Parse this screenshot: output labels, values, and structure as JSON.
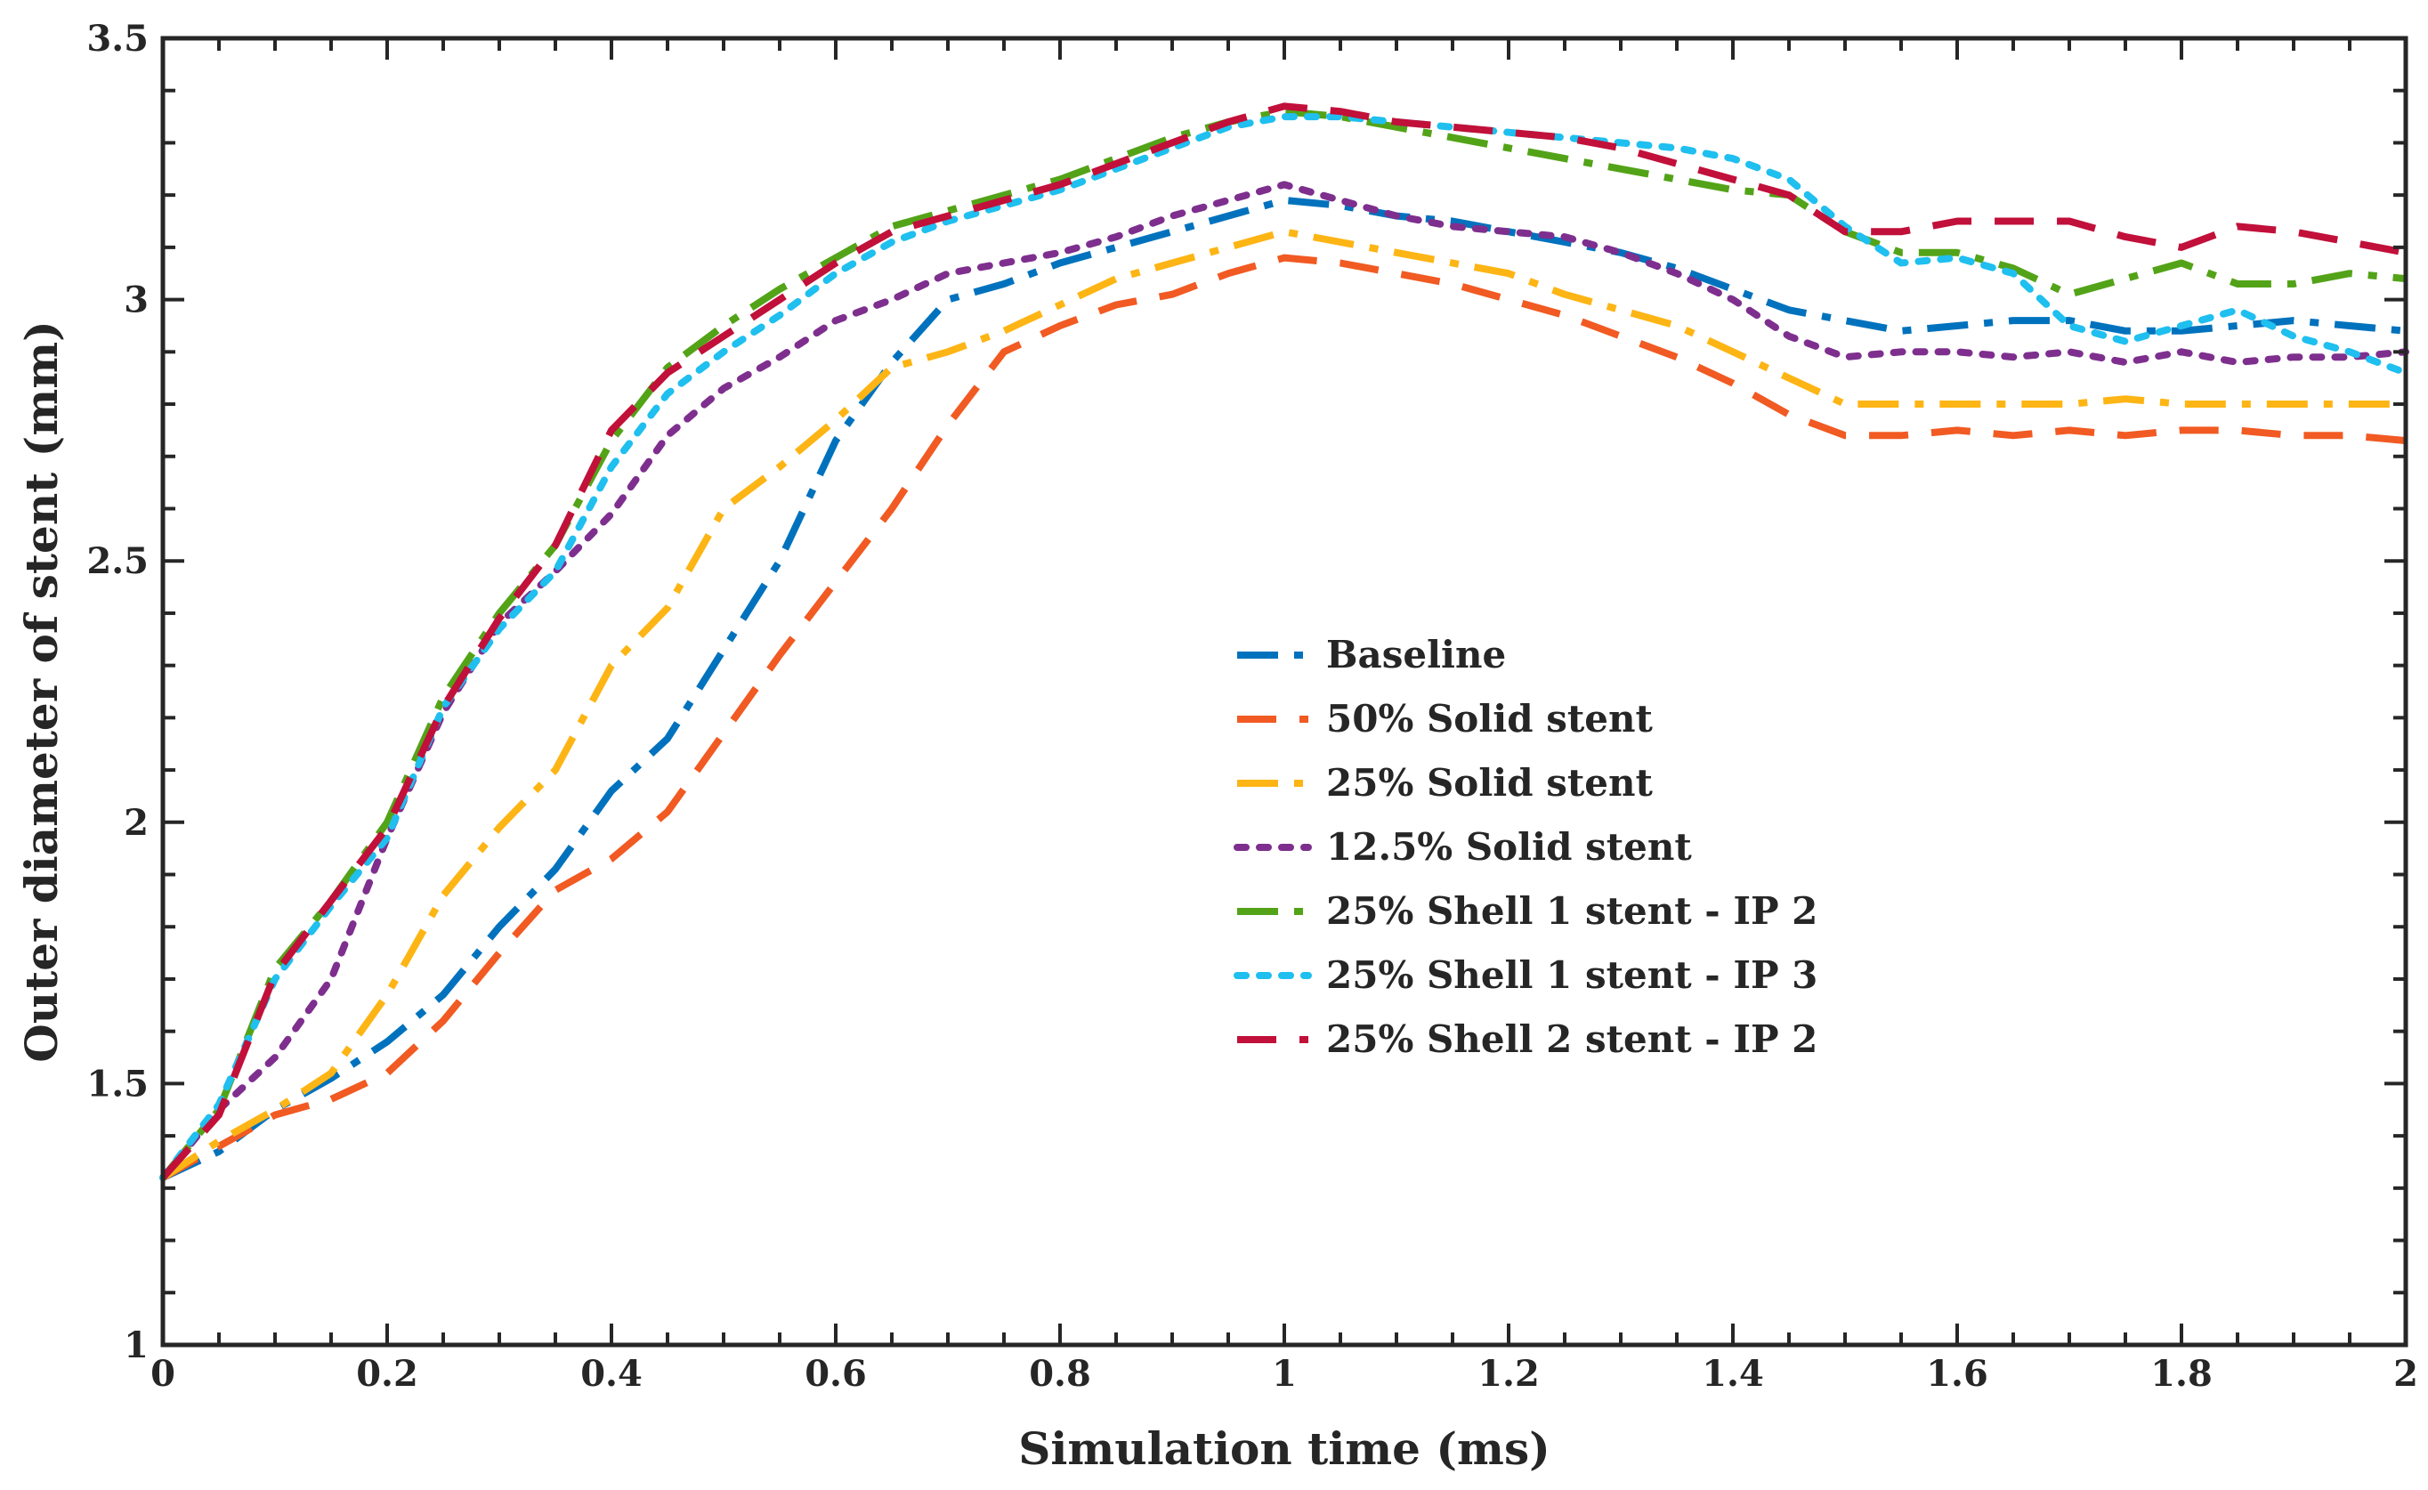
{
  "chart_data": {
    "type": "line",
    "title": "",
    "xlabel": "Simulation time (ms)",
    "ylabel": "Outer diameter of stent (mm)",
    "xlim": [
      0,
      2
    ],
    "ylim": [
      1,
      3.5
    ],
    "grid": false,
    "legend_position": "center-right",
    "x_ticks": [
      0,
      0.2,
      0.4,
      0.6,
      0.8,
      1,
      1.2,
      1.4,
      1.6,
      1.8,
      2
    ],
    "x_tick_labels": [
      "0",
      "0.2",
      "0.4",
      "0.6",
      "0.8",
      "1",
      "1.2",
      "1.4",
      "1.6",
      "1.8",
      "2"
    ],
    "y_ticks": [
      1,
      1.5,
      2,
      2.5,
      3,
      3.5
    ],
    "y_tick_labels": [
      "1",
      "1.5",
      "2",
      "2.5",
      "3",
      "3.5"
    ],
    "x": [
      0,
      0.05,
      0.1,
      0.15,
      0.2,
      0.25,
      0.3,
      0.35,
      0.4,
      0.45,
      0.5,
      0.55,
      0.6,
      0.65,
      0.7,
      0.75,
      0.8,
      0.85,
      0.9,
      0.95,
      1.0,
      1.05,
      1.1,
      1.15,
      1.2,
      1.25,
      1.3,
      1.35,
      1.4,
      1.45,
      1.5,
      1.55,
      1.6,
      1.65,
      1.7,
      1.75,
      1.8,
      1.85,
      1.9,
      1.95,
      2.0
    ],
    "series": [
      {
        "name": "Baseline",
        "color": "#0072BD",
        "dash": "dashdot",
        "values": [
          1.32,
          1.37,
          1.45,
          1.51,
          1.58,
          1.67,
          1.8,
          1.91,
          2.06,
          2.16,
          2.33,
          2.5,
          2.73,
          2.88,
          3.0,
          3.03,
          3.07,
          3.1,
          3.13,
          3.16,
          3.19,
          3.18,
          3.16,
          3.15,
          3.13,
          3.11,
          3.09,
          3.06,
          3.02,
          2.98,
          2.96,
          2.94,
          2.95,
          2.96,
          2.96,
          2.94,
          2.94,
          2.95,
          2.96,
          2.95,
          2.94
        ]
      },
      {
        "name": "50% Solid stent",
        "color": "#F15A22",
        "dash": "dashed",
        "values": [
          1.32,
          1.38,
          1.44,
          1.47,
          1.52,
          1.62,
          1.75,
          1.87,
          1.93,
          2.02,
          2.17,
          2.32,
          2.46,
          2.6,
          2.76,
          2.9,
          2.95,
          2.99,
          3.01,
          3.05,
          3.08,
          3.07,
          3.05,
          3.03,
          3.0,
          2.97,
          2.93,
          2.89,
          2.84,
          2.78,
          2.74,
          2.74,
          2.75,
          2.74,
          2.75,
          2.74,
          2.75,
          2.75,
          2.74,
          2.74,
          2.73
        ]
      },
      {
        "name": "25% Solid stent",
        "color": "#FDB515",
        "dash": "dashdot",
        "values": [
          1.32,
          1.39,
          1.45,
          1.52,
          1.67,
          1.86,
          1.99,
          2.1,
          2.3,
          2.41,
          2.6,
          2.68,
          2.77,
          2.87,
          2.9,
          2.94,
          2.99,
          3.04,
          3.07,
          3.1,
          3.13,
          3.11,
          3.09,
          3.07,
          3.05,
          3.01,
          2.98,
          2.95,
          2.9,
          2.85,
          2.8,
          2.8,
          2.8,
          2.8,
          2.8,
          2.81,
          2.8,
          2.8,
          2.8,
          2.8,
          2.8
        ]
      },
      {
        "name": "12.5% Solid stent",
        "color": "#7E2F8E",
        "dash": "dotted",
        "values": [
          1.32,
          1.45,
          1.55,
          1.7,
          1.97,
          2.21,
          2.38,
          2.48,
          2.59,
          2.74,
          2.83,
          2.89,
          2.96,
          3.0,
          3.05,
          3.07,
          3.09,
          3.12,
          3.16,
          3.19,
          3.22,
          3.19,
          3.16,
          3.14,
          3.13,
          3.12,
          3.09,
          3.05,
          3.0,
          2.93,
          2.89,
          2.9,
          2.9,
          2.89,
          2.9,
          2.88,
          2.9,
          2.88,
          2.89,
          2.89,
          2.9
        ]
      },
      {
        "name": "25% Shell 1 stent - IP 2",
        "color": "#53A318",
        "dash": "dashdot",
        "values": [
          1.32,
          1.45,
          1.72,
          1.85,
          2.0,
          2.24,
          2.4,
          2.53,
          2.73,
          2.87,
          2.95,
          3.02,
          3.08,
          3.14,
          3.17,
          3.2,
          3.23,
          3.27,
          3.31,
          3.34,
          3.36,
          3.35,
          3.33,
          3.31,
          3.29,
          3.27,
          3.25,
          3.23,
          3.21,
          3.2,
          3.13,
          3.09,
          3.09,
          3.06,
          3.01,
          3.04,
          3.07,
          3.03,
          3.03,
          3.05,
          3.04
        ]
      },
      {
        "name": "25% Shell 1 stent - IP 3",
        "color": "#1FBFEF",
        "dash": "dotted",
        "values": [
          1.32,
          1.46,
          1.7,
          1.84,
          1.97,
          2.22,
          2.37,
          2.48,
          2.68,
          2.82,
          2.9,
          2.97,
          3.05,
          3.11,
          3.15,
          3.18,
          3.21,
          3.25,
          3.29,
          3.33,
          3.35,
          3.35,
          3.34,
          3.33,
          3.32,
          3.31,
          3.3,
          3.29,
          3.27,
          3.23,
          3.14,
          3.07,
          3.08,
          3.05,
          2.95,
          2.92,
          2.95,
          2.98,
          2.93,
          2.9,
          2.86
        ]
      },
      {
        "name": "25% Shell 2 stent - IP 2",
        "color": "#C1103A",
        "dash": "dashed",
        "values": [
          1.32,
          1.44,
          1.71,
          1.85,
          1.99,
          2.22,
          2.39,
          2.53,
          2.75,
          2.86,
          2.93,
          3.0,
          3.07,
          3.13,
          3.16,
          3.19,
          3.22,
          3.26,
          3.3,
          3.34,
          3.37,
          3.36,
          3.34,
          3.33,
          3.32,
          3.31,
          3.29,
          3.26,
          3.23,
          3.2,
          3.13,
          3.13,
          3.15,
          3.15,
          3.15,
          3.12,
          3.1,
          3.14,
          3.13,
          3.11,
          3.09
        ]
      }
    ]
  }
}
